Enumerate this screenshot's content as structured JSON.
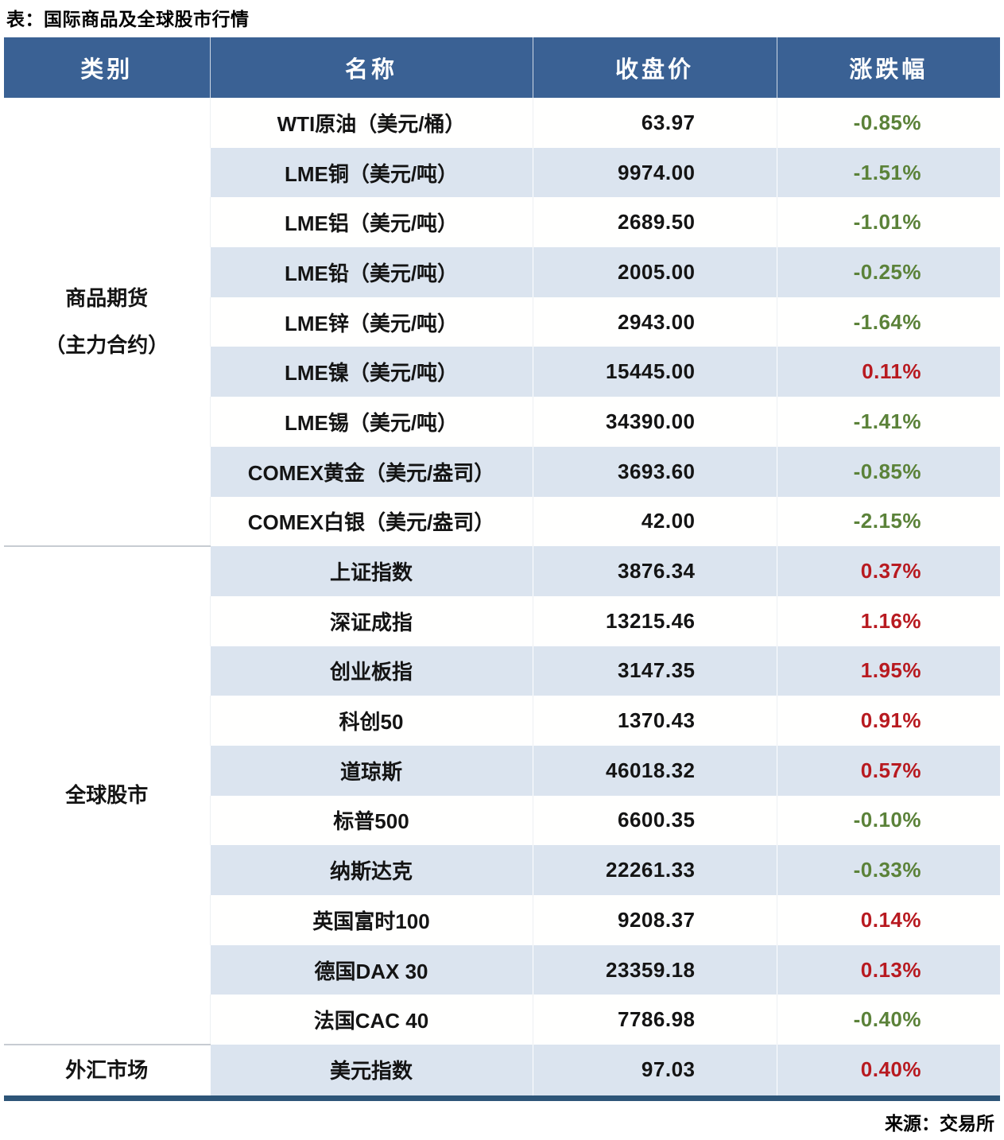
{
  "colors": {
    "header_bg": "#3A6194",
    "stripe_bg": "#DBE4EF",
    "positive_red": "#B81A20",
    "negative_green": "#5B8239",
    "bottom_rule_navy": "#2D5578",
    "group_separator_gray": "#C7CCD2"
  },
  "chart_data": {
    "type": "table",
    "title": "表：国际商品及全球股市行情",
    "source": "来源：交易所",
    "columns": [
      "类别",
      "名称",
      "收盘价",
      "涨跌幅"
    ],
    "groups": [
      {
        "category_lines": [
          "商品期货",
          "（主力合约）"
        ],
        "rows": [
          {
            "name": "WTI原油（美元/桶）",
            "close": "63.97",
            "change": "-0.85%"
          },
          {
            "name": "LME铜（美元/吨）",
            "close": "9974.00",
            "change": "-1.51%"
          },
          {
            "name": "LME铝（美元/吨）",
            "close": "2689.50",
            "change": "-1.01%"
          },
          {
            "name": "LME铅（美元/吨）",
            "close": "2005.00",
            "change": "-0.25%"
          },
          {
            "name": "LME锌（美元/吨）",
            "close": "2943.00",
            "change": "-1.64%"
          },
          {
            "name": "LME镍（美元/吨）",
            "close": "15445.00",
            "change": "0.11%"
          },
          {
            "name": "LME锡（美元/吨）",
            "close": "34390.00",
            "change": "-1.41%"
          },
          {
            "name": "COMEX黄金（美元/盎司）",
            "close": "3693.60",
            "change": "-0.85%"
          },
          {
            "name": "COMEX白银（美元/盎司）",
            "close": "42.00",
            "change": "-2.15%"
          }
        ]
      },
      {
        "category_lines": [
          "全球股市"
        ],
        "rows": [
          {
            "name": "上证指数",
            "close": "3876.34",
            "change": "0.37%"
          },
          {
            "name": "深证成指",
            "close": "13215.46",
            "change": "1.16%"
          },
          {
            "name": "创业板指",
            "close": "3147.35",
            "change": "1.95%"
          },
          {
            "name": "科创50",
            "close": "1370.43",
            "change": "0.91%"
          },
          {
            "name": "道琼斯",
            "close": "46018.32",
            "change": "0.57%"
          },
          {
            "name": "标普500",
            "close": "6600.35",
            "change": "-0.10%"
          },
          {
            "name": "纳斯达克",
            "close": "22261.33",
            "change": "-0.33%"
          },
          {
            "name": "英国富时100",
            "close": "9208.37",
            "change": "0.14%"
          },
          {
            "name": "德国DAX 30",
            "close": "23359.18",
            "change": "0.13%"
          },
          {
            "name": "法国CAC 40",
            "close": "7786.98",
            "change": "-0.40%"
          }
        ]
      },
      {
        "category_lines": [
          "外汇市场"
        ],
        "rows": [
          {
            "name": "美元指数",
            "close": "97.03",
            "change": "0.40%"
          }
        ]
      }
    ]
  }
}
